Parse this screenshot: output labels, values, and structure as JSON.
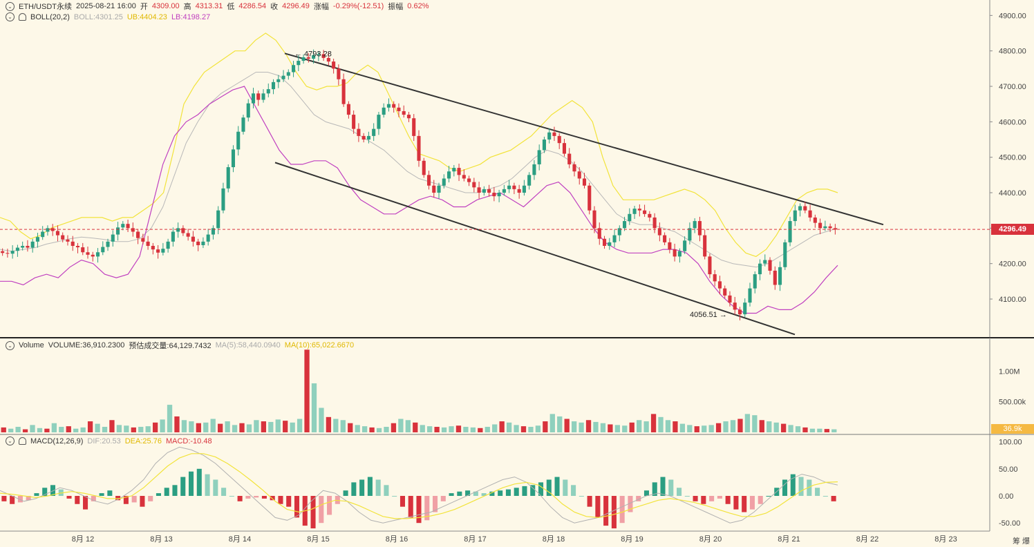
{
  "header": {
    "symbol": "ETH/USDT永续",
    "datetime": "2025-08-21 16:00",
    "open_label": "开",
    "open": "4309.00",
    "high_label": "高",
    "high": "4313.31",
    "low_label": "低",
    "low": "4286.54",
    "close_label": "收",
    "close": "4296.49",
    "change_label": "涨幅",
    "change": "-0.29%(-12.51)",
    "amp_label": "振幅",
    "amp": "0.62%"
  },
  "boll_legend": {
    "name": "BOLL(20,2)",
    "boll": "BOLL:4301.25",
    "ub": "UB:4404.23",
    "lb": "LB:4198.27"
  },
  "volume_legend": {
    "name": "Volume",
    "volume": "VOLUME:36,910.2300",
    "est": "预估成交量:64,129.7432",
    "ma5": "MA(5):58,440.0940",
    "ma10": "MA(10):65,022.6670"
  },
  "macd_legend": {
    "name": "MACD(12,26,9)",
    "dif": "DIF:20.53",
    "dea": "DEA:25.76",
    "macd": "MACD:-10.48"
  },
  "price_tag": "4296.49",
  "volume_tag": "36.9k",
  "annotations": {
    "high": "4793.28",
    "low": "4056.51"
  },
  "corner_label": "筹 爆",
  "colors": {
    "up": "#2b9e82",
    "down": "#d8323c",
    "ub": "#f2e33a",
    "lb": "#c040c0",
    "mid": "#b8b8b8",
    "bg": "#fdf8e8"
  },
  "chart_data": {
    "type": "candlestick",
    "interval": "1h",
    "x_ticks": [
      "8月 12",
      "8月 13",
      "8月 14",
      "8月 15",
      "8月 16",
      "8月 17",
      "8月 18",
      "8月 19",
      "8月 20",
      "8月 21",
      "8月 22",
      "8月 23"
    ],
    "y_ticks_price": [
      4100,
      4200,
      4300,
      4400,
      4500,
      4600,
      4700,
      4800,
      4900
    ],
    "y_ticks_volume": [
      "500.00k",
      "1.00M"
    ],
    "y_ticks_macd": [
      -50,
      0,
      50,
      100
    ],
    "price_close_path": [
      4230,
      4228,
      4236,
      4245,
      4250,
      4245,
      4262,
      4275,
      4290,
      4300,
      4292,
      4280,
      4268,
      4262,
      4250,
      4246,
      4232,
      4225,
      4220,
      4232,
      4247,
      4262,
      4282,
      4302,
      4312,
      4300,
      4290,
      4272,
      4262,
      4250,
      4240,
      4231,
      4242,
      4262,
      4290,
      4300,
      4286,
      4276,
      4262,
      4252,
      4262,
      4282,
      4300,
      4350,
      4412,
      4472,
      4522,
      4572,
      4612,
      4652,
      4680,
      4662,
      4680,
      4692,
      4712,
      4720,
      4730,
      4740,
      4760,
      4772,
      4782,
      4778,
      4788,
      4791,
      4780,
      4770,
      4750,
      4720,
      4650,
      4620,
      4580,
      4560,
      4550,
      4560,
      4580,
      4620,
      4640,
      4650,
      4640,
      4630,
      4620,
      4610,
      4560,
      4490,
      4450,
      4420,
      4400,
      4420,
      4440,
      4460,
      4470,
      4450,
      4440,
      4430,
      4415,
      4400,
      4410,
      4400,
      4390,
      4400,
      4410,
      4420,
      4410,
      4400,
      4420,
      4450,
      4480,
      4520,
      4550,
      4570,
      4560,
      4540,
      4510,
      4480,
      4460,
      4440,
      4420,
      4350,
      4300,
      4270,
      4250,
      4260,
      4280,
      4300,
      4320,
      4340,
      4355,
      4350,
      4340,
      4330,
      4300,
      4280,
      4260,
      4240,
      4220,
      4235,
      4265,
      4300,
      4320,
      4280,
      4220,
      4170,
      4150,
      4130,
      4110,
      4090,
      4070,
      4057,
      4090,
      4130,
      4170,
      4200,
      4210,
      4180,
      4140,
      4190,
      4260,
      4320,
      4350,
      4362,
      4350,
      4330,
      4315,
      4300,
      4305,
      4300,
      4296
    ],
    "boll_ub_path": [
      4330,
      4320,
      4290,
      4270,
      4280,
      4300,
      4310,
      4320,
      4330,
      4330,
      4330,
      4320,
      4330,
      4330,
      4350,
      4370,
      4400,
      4520,
      4650,
      4700,
      4740,
      4760,
      4780,
      4800,
      4800,
      4830,
      4850,
      4830,
      4790,
      4740,
      4700,
      4690,
      4700,
      4700,
      4710,
      4740,
      4760,
      4740,
      4680,
      4620,
      4560,
      4510,
      4500,
      4490,
      4470,
      4460,
      4470,
      4480,
      4500,
      4510,
      4520,
      4540,
      4560,
      4590,
      4620,
      4640,
      4660,
      4640,
      4600,
      4500,
      4420,
      4380,
      4380,
      4380,
      4380,
      4390,
      4400,
      4410,
      4400,
      4380,
      4350,
      4300,
      4260,
      4230,
      4220,
      4240,
      4280,
      4330,
      4380,
      4400,
      4410,
      4410,
      4400
    ],
    "boll_mid_path": [
      4240,
      4235,
      4240,
      4245,
      4255,
      4262,
      4270,
      4275,
      4272,
      4268,
      4262,
      4262,
      4270,
      4300,
      4360,
      4450,
      4540,
      4600,
      4650,
      4680,
      4700,
      4720,
      4740,
      4740,
      4730,
      4700,
      4660,
      4620,
      4600,
      4590,
      4580,
      4560,
      4540,
      4520,
      4490,
      4460,
      4440,
      4430,
      4420,
      4410,
      4400,
      4400,
      4410,
      4420,
      4440,
      4470,
      4500,
      4520,
      4510,
      4490,
      4460,
      4420,
      4380,
      4340,
      4320,
      4310,
      4310,
      4300,
      4290,
      4270,
      4250,
      4230,
      4210,
      4200,
      4195,
      4190,
      4200,
      4220,
      4240,
      4260,
      4280,
      4290,
      4300
    ],
    "boll_lb_path": [
      4150,
      4150,
      4140,
      4160,
      4170,
      4160,
      4190,
      4210,
      4200,
      4170,
      4160,
      4170,
      4220,
      4350,
      4480,
      4560,
      4600,
      4620,
      4650,
      4670,
      4690,
      4700,
      4640,
      4580,
      4520,
      4480,
      4480,
      4490,
      4490,
      4470,
      4420,
      4380,
      4360,
      4340,
      4340,
      4360,
      4380,
      4390,
      4380,
      4360,
      4360,
      4380,
      4390,
      4400,
      4380,
      4360,
      4390,
      4420,
      4430,
      4400,
      4350,
      4300,
      4260,
      4240,
      4230,
      4230,
      4230,
      4240,
      4240,
      4230,
      4200,
      4150,
      4110,
      4080,
      4060,
      4060,
      4080,
      4070,
      4070,
      4090,
      4120,
      4160,
      4195
    ],
    "volume_path_k": [
      80,
      60,
      90,
      50,
      120,
      70,
      60,
      150,
      90,
      100,
      60,
      80,
      180,
      140,
      90,
      200,
      120,
      110,
      80,
      90,
      100,
      160,
      210,
      450,
      260,
      200,
      180,
      150,
      160,
      220,
      140,
      180,
      120,
      150,
      130,
      200,
      180,
      170,
      210,
      190,
      160,
      220,
      1350,
      800,
      400,
      250,
      220,
      200,
      150,
      120,
      100,
      80,
      70,
      90,
      150,
      220,
      200,
      160,
      120,
      100,
      90,
      80,
      100,
      110,
      90,
      80,
      70,
      90,
      130,
      180,
      160,
      120,
      100,
      90,
      110,
      180,
      300,
      260,
      220,
      180,
      160,
      200,
      170,
      150,
      130,
      120,
      110,
      160,
      200,
      180,
      300,
      250,
      200,
      180,
      140,
      120,
      100,
      110,
      120,
      150,
      180,
      200,
      220,
      300,
      280,
      200,
      180,
      160,
      140,
      120,
      100,
      80,
      60,
      60,
      55,
      50
    ],
    "macd_hist_path": [
      -10,
      -15,
      -12,
      -8,
      5,
      15,
      20,
      12,
      -5,
      -15,
      -25,
      -10,
      5,
      10,
      -8,
      -15,
      -12,
      -20,
      -10,
      5,
      15,
      20,
      35,
      45,
      50,
      40,
      30,
      15,
      0,
      -10,
      -5,
      -3,
      -5,
      -8,
      -15,
      -20,
      -40,
      -55,
      -60,
      -50,
      -35,
      -15,
      10,
      25,
      30,
      35,
      30,
      20,
      0,
      -20,
      -40,
      -50,
      -45,
      -30,
      -10,
      5,
      8,
      10,
      8,
      5,
      8,
      10,
      12,
      15,
      18,
      20,
      25,
      30,
      35,
      30,
      20,
      0,
      -20,
      -40,
      -55,
      -60,
      -50,
      -30,
      -10,
      10,
      25,
      35,
      30,
      15,
      0,
      -10,
      -15,
      -10,
      -5,
      -15,
      -25,
      -30,
      -25,
      -15,
      0,
      15,
      30,
      40,
      35,
      30,
      15,
      0,
      -10
    ],
    "macd_dif_path": [
      10,
      0,
      -10,
      -5,
      5,
      15,
      10,
      0,
      -10,
      -15,
      -5,
      10,
      30,
      60,
      80,
      90,
      85,
      75,
      60,
      40,
      20,
      0,
      -20,
      -40,
      -45,
      -35,
      -10,
      10,
      5,
      -10,
      -30,
      -45,
      -50,
      -45,
      -40,
      -35,
      -30,
      -20,
      -10,
      0,
      10,
      20,
      30,
      35,
      25,
      5,
      -20,
      -40,
      -50,
      -45,
      -40,
      -30,
      -20,
      -10,
      0,
      5,
      0,
      -10,
      -20,
      -30,
      -40,
      -50,
      -45,
      -30,
      -10,
      10,
      30,
      40,
      35,
      25,
      20
    ],
    "macd_dea_path": [
      5,
      3,
      0,
      -3,
      0,
      5,
      8,
      5,
      0,
      -5,
      -5,
      0,
      15,
      35,
      55,
      70,
      78,
      78,
      72,
      60,
      45,
      28,
      10,
      -10,
      -25,
      -30,
      -25,
      -15,
      -8,
      -10,
      -18,
      -28,
      -38,
      -42,
      -42,
      -40,
      -37,
      -32,
      -25,
      -15,
      -5,
      5,
      15,
      22,
      25,
      20,
      5,
      -15,
      -30,
      -38,
      -40,
      -36,
      -30,
      -22,
      -15,
      -8,
      -5,
      -8,
      -12,
      -18,
      -25,
      -32,
      -38,
      -38,
      -32,
      -20,
      -5,
      10,
      20,
      25,
      26
    ]
  }
}
